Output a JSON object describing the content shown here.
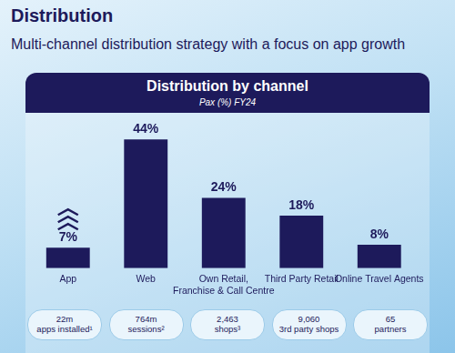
{
  "header": {
    "title": "Distribution",
    "subtitle": "Multi-channel distribution strategy with a focus on app growth"
  },
  "chart_data": {
    "type": "bar",
    "title": "Distribution by channel",
    "subtitle": "Pax (%) FY24",
    "categories": [
      "App",
      "Web",
      "Own Retail, Franchise & Call Centre",
      "Third Party Retail",
      "Online Travel Agents"
    ],
    "values": [
      7,
      44,
      24,
      18,
      8
    ],
    "value_labels": [
      "7%",
      "44%",
      "24%",
      "18%",
      "8%"
    ],
    "color": "#1d1a5b",
    "data_labels": true,
    "tick_labels": "x",
    "grid": false
  },
  "channel_stats": [
    {
      "value": "22m",
      "label": "apps installed¹"
    },
    {
      "value": "764m",
      "label": "sessions²"
    },
    {
      "value": "2,463",
      "label": "shops³"
    },
    {
      "value": "9,060",
      "label": "3rd party shops"
    },
    {
      "value": "65",
      "label": "partners"
    }
  ]
}
